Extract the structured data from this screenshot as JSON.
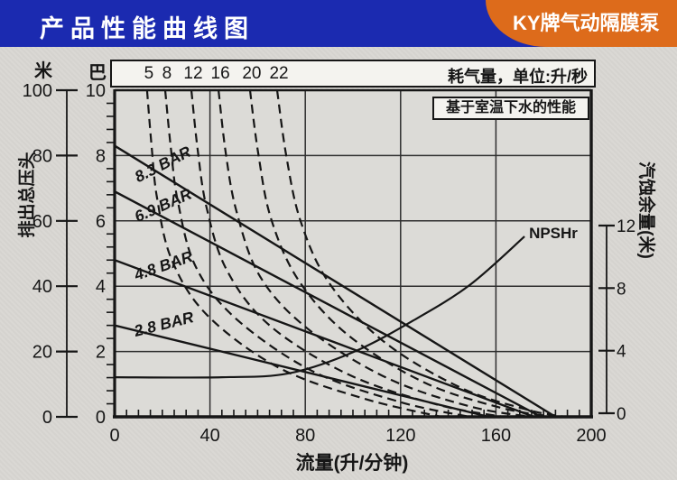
{
  "header": {
    "title": "产品性能曲线图",
    "badge": "KY牌气动隔膜泵",
    "bar_color": "#1b2ab0",
    "badge_color": "#dd6b1b"
  },
  "chart_data": {
    "type": "line",
    "note": "基于室温下水的性能",
    "title_strip": {
      "label": "耗气量，单位:升/秒",
      "values": [
        "5",
        "8",
        "12",
        "16",
        "20",
        "22"
      ]
    },
    "x_axis": {
      "label": "流量(升/分钟)",
      "range": [
        0,
        200
      ],
      "ticks": [
        0,
        40,
        80,
        120,
        160,
        200
      ],
      "minor_step": 5
    },
    "left_axis_bar": {
      "label": "巴",
      "range": [
        0,
        10
      ],
      "ticks": [
        10,
        8,
        6,
        4,
        2,
        0
      ]
    },
    "left_axis_m": {
      "label": "米",
      "title": "排出总压头",
      "range": [
        0,
        100
      ],
      "ticks": [
        100,
        80,
        60,
        40,
        20,
        0
      ]
    },
    "right_axis": {
      "label": "汽蚀余量(米)",
      "range": [
        0,
        12
      ],
      "ticks": [
        12,
        8,
        4,
        0
      ]
    },
    "grid": true,
    "head_curves": [
      {
        "label": "8.3 BAR",
        "points": [
          [
            0,
            8.3
          ],
          [
            185,
            0
          ]
        ],
        "label_angle": -27
      },
      {
        "label": "6.9 BAR",
        "points": [
          [
            0,
            6.9
          ],
          [
            179,
            0
          ]
        ],
        "label_angle": -24
      },
      {
        "label": "4.8 BAR",
        "points": [
          [
            0,
            4.8
          ],
          [
            176,
            0
          ]
        ],
        "label_angle": -19
      },
      {
        "label": "2.8 BAR",
        "points": [
          [
            0,
            2.8
          ],
          [
            157,
            0
          ]
        ],
        "label_angle": -14
      }
    ],
    "air_curves": [
      {
        "value": "5",
        "points": [
          [
            13.6,
            10
          ],
          [
            15.5,
            8.3
          ],
          [
            17.8,
            6.7
          ],
          [
            24,
            4.8
          ],
          [
            39,
            3.1
          ],
          [
            69,
            1.5
          ],
          [
            105,
            0.55
          ],
          [
            137,
            0
          ]
        ]
      },
      {
        "value": "8",
        "points": [
          [
            21.2,
            10
          ],
          [
            23.5,
            8.3
          ],
          [
            26.5,
            6.6
          ],
          [
            34,
            4.6
          ],
          [
            51,
            3.0
          ],
          [
            83,
            1.4
          ],
          [
            120,
            0.45
          ],
          [
            149,
            0
          ]
        ]
      },
      {
        "value": "12",
        "points": [
          [
            32.2,
            10
          ],
          [
            34.8,
            8.2
          ],
          [
            38.6,
            6.4
          ],
          [
            47,
            4.5
          ],
          [
            65,
            2.8
          ],
          [
            98,
            1.3
          ],
          [
            135,
            0.38
          ],
          [
            163,
            0
          ]
        ]
      },
      {
        "value": "16",
        "points": [
          [
            43.6,
            10
          ],
          [
            46.6,
            8.1
          ],
          [
            51.1,
            6.3
          ],
          [
            61,
            4.3
          ],
          [
            81,
            2.7
          ],
          [
            114,
            1.2
          ],
          [
            149,
            0.32
          ],
          [
            175,
            0
          ]
        ]
      },
      {
        "value": "20",
        "points": [
          [
            56.8,
            10
          ],
          [
            60.2,
            8.1
          ],
          [
            65.5,
            6.1
          ],
          [
            77,
            4.2
          ],
          [
            98,
            2.5
          ],
          [
            130,
            1.05
          ],
          [
            162,
            0.28
          ],
          [
            184,
            0
          ]
        ]
      },
      {
        "value": "22",
        "points": [
          [
            68.2,
            10
          ],
          [
            72,
            8.0
          ],
          [
            78,
            6.0
          ],
          [
            90,
            4.1
          ],
          [
            113,
            2.3
          ],
          [
            145,
            0.9
          ],
          [
            173,
            0.22
          ],
          [
            189,
            0
          ]
        ]
      }
    ],
    "npshr": {
      "label": "NPSHr",
      "points": [
        [
          0,
          2.3
        ],
        [
          45,
          2.3
        ],
        [
          73,
          2.55
        ],
        [
          100,
          3.9
        ],
        [
          125,
          5.9
        ],
        [
          149,
          8.2
        ],
        [
          172,
          11.3
        ]
      ]
    }
  }
}
